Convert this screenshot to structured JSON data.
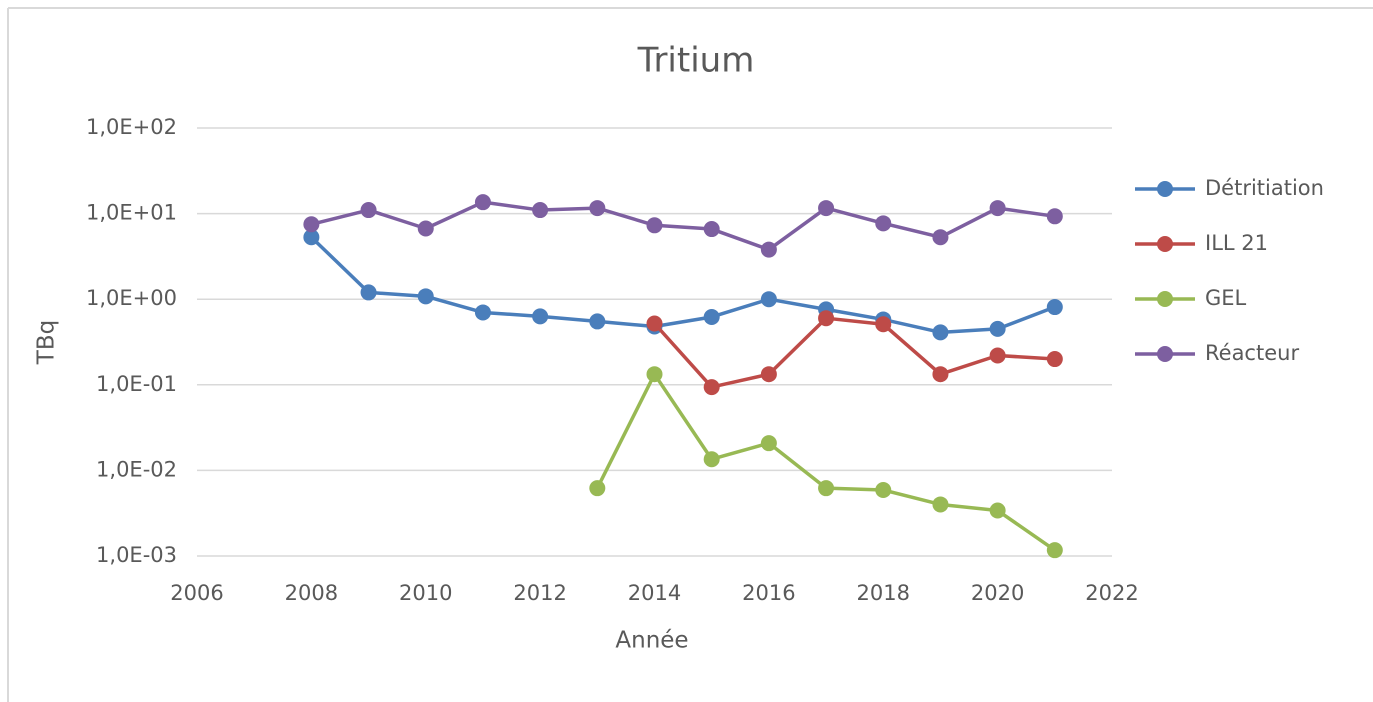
{
  "chart_data": {
    "type": "line",
    "title": "Tritium",
    "x_label": "Année",
    "y_label": "TBq",
    "x": [
      2008,
      2009,
      2010,
      2011,
      2012,
      2013,
      2014,
      2015,
      2016,
      2017,
      2018,
      2019,
      2020,
      2021
    ],
    "series": [
      {
        "name": "Détritiation",
        "color": "#4a7ebb",
        "values": [
          5.3,
          1.2,
          1.08,
          0.7,
          0.63,
          0.55,
          0.48,
          0.62,
          1.0,
          0.76,
          0.58,
          0.41,
          0.45,
          0.81
        ]
      },
      {
        "name": "ILL 21",
        "color": "#be4b48",
        "values": [
          null,
          null,
          null,
          null,
          null,
          null,
          0.52,
          0.094,
          0.133,
          0.6,
          0.51,
          0.133,
          0.22,
          0.2
        ]
      },
      {
        "name": "GEL",
        "color": "#98b954",
        "values": [
          null,
          null,
          null,
          null,
          null,
          0.0062,
          0.133,
          0.0135,
          0.0208,
          0.0062,
          0.0059,
          0.004,
          0.0034,
          0.00117
        ]
      },
      {
        "name": "Réacteur",
        "color": "#7d5fa0",
        "values": [
          7.5,
          11,
          6.7,
          13.6,
          11,
          11.6,
          7.3,
          6.6,
          3.8,
          11.6,
          7.7,
          5.3,
          11.6,
          9.3
        ]
      }
    ],
    "xlim": [
      2006,
      2022
    ],
    "xticks": [
      2006,
      2008,
      2010,
      2012,
      2014,
      2016,
      2018,
      2020,
      2022
    ],
    "ylim": [
      0.001,
      100
    ],
    "y_log_scale": true,
    "yticks": [
      {
        "value": 0.001,
        "label": "1,0E-03"
      },
      {
        "value": 0.01,
        "label": "1,0E-02"
      },
      {
        "value": 0.1,
        "label": "1,0E-01"
      },
      {
        "value": 1,
        "label": "1,0E+00"
      },
      {
        "value": 10,
        "label": "1,0E+01"
      },
      {
        "value": 100,
        "label": "1,0E+02"
      }
    ],
    "grid": true,
    "legend_position": "right"
  }
}
